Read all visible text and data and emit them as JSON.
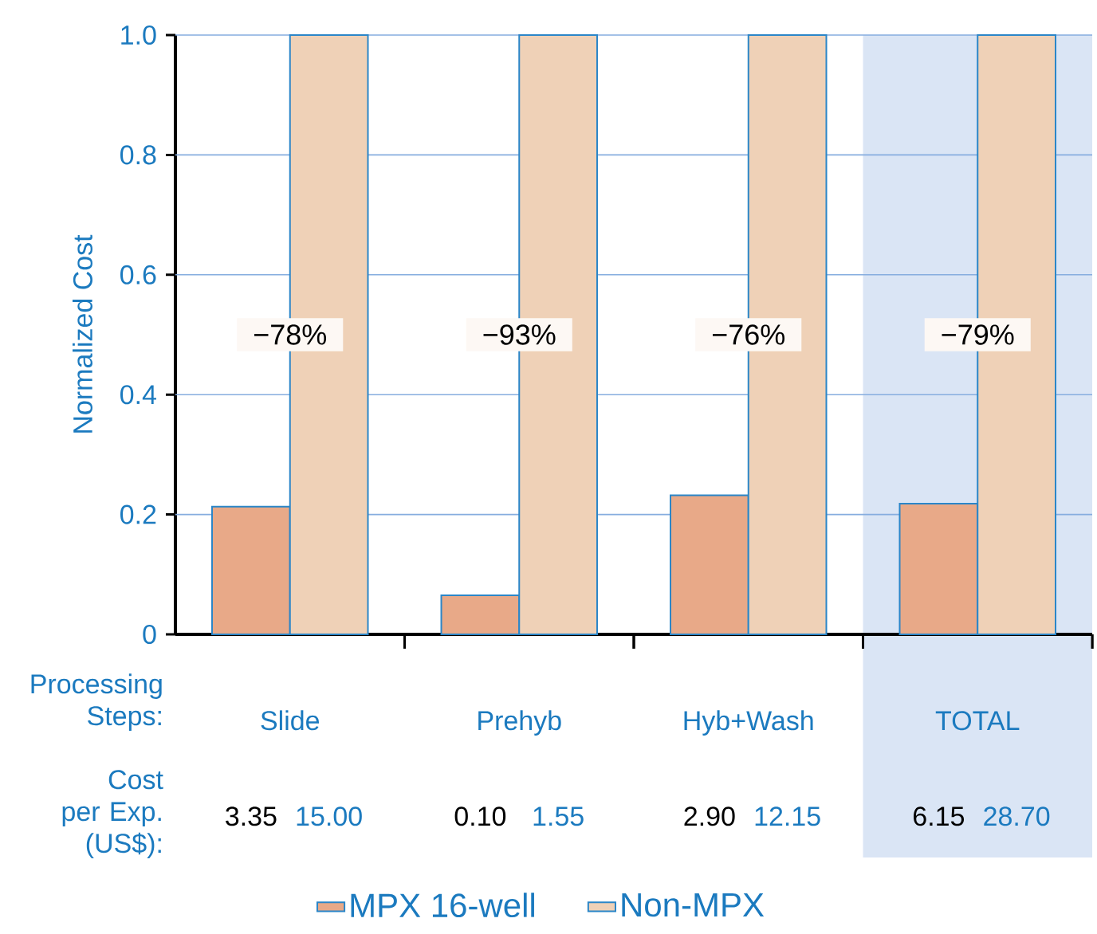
{
  "chart_data": {
    "type": "bar",
    "ylabel": "Normalized Cost",
    "xlabel": "Processing Steps:",
    "categories": [
      "Slide",
      "Prehyb",
      "Hyb+Wash",
      "TOTAL"
    ],
    "series": [
      {
        "name": "MPX 16-well",
        "color": "#e8a988",
        "values": [
          0.213,
          0.065,
          0.232,
          0.218
        ]
      },
      {
        "name": "Non-MPX",
        "color": "#efd1b7",
        "values": [
          1.0,
          1.0,
          1.0,
          1.0
        ]
      }
    ],
    "ylim": [
      0,
      1.0
    ],
    "yticks": [
      0,
      0.2,
      0.4,
      0.6,
      0.8,
      {
        "value": 1.0,
        "label": "1.0"
      }
    ],
    "grid": "y",
    "legend": "bottom",
    "bands": [
      {
        "axis": "x",
        "from": "TOTAL",
        "to": "TOTAL",
        "color": "#dae5f5"
      }
    ],
    "annotations": [
      {
        "text": "−78%",
        "x": "Slide",
        "y": 0.5
      },
      {
        "text": "−93%",
        "x": "Prehyb",
        "y": 0.5
      },
      {
        "text": "−76%",
        "x": "Hyb+Wash",
        "y": 0.5
      },
      {
        "text": "−79%",
        "x": "TOTAL",
        "y": 0.5
      },
      "Cost per Exp. (US$):",
      "3.35",
      "15.00",
      "0.10",
      "1.55",
      "2.90",
      "12.15",
      "6.15",
      "28.70"
    ]
  }
}
